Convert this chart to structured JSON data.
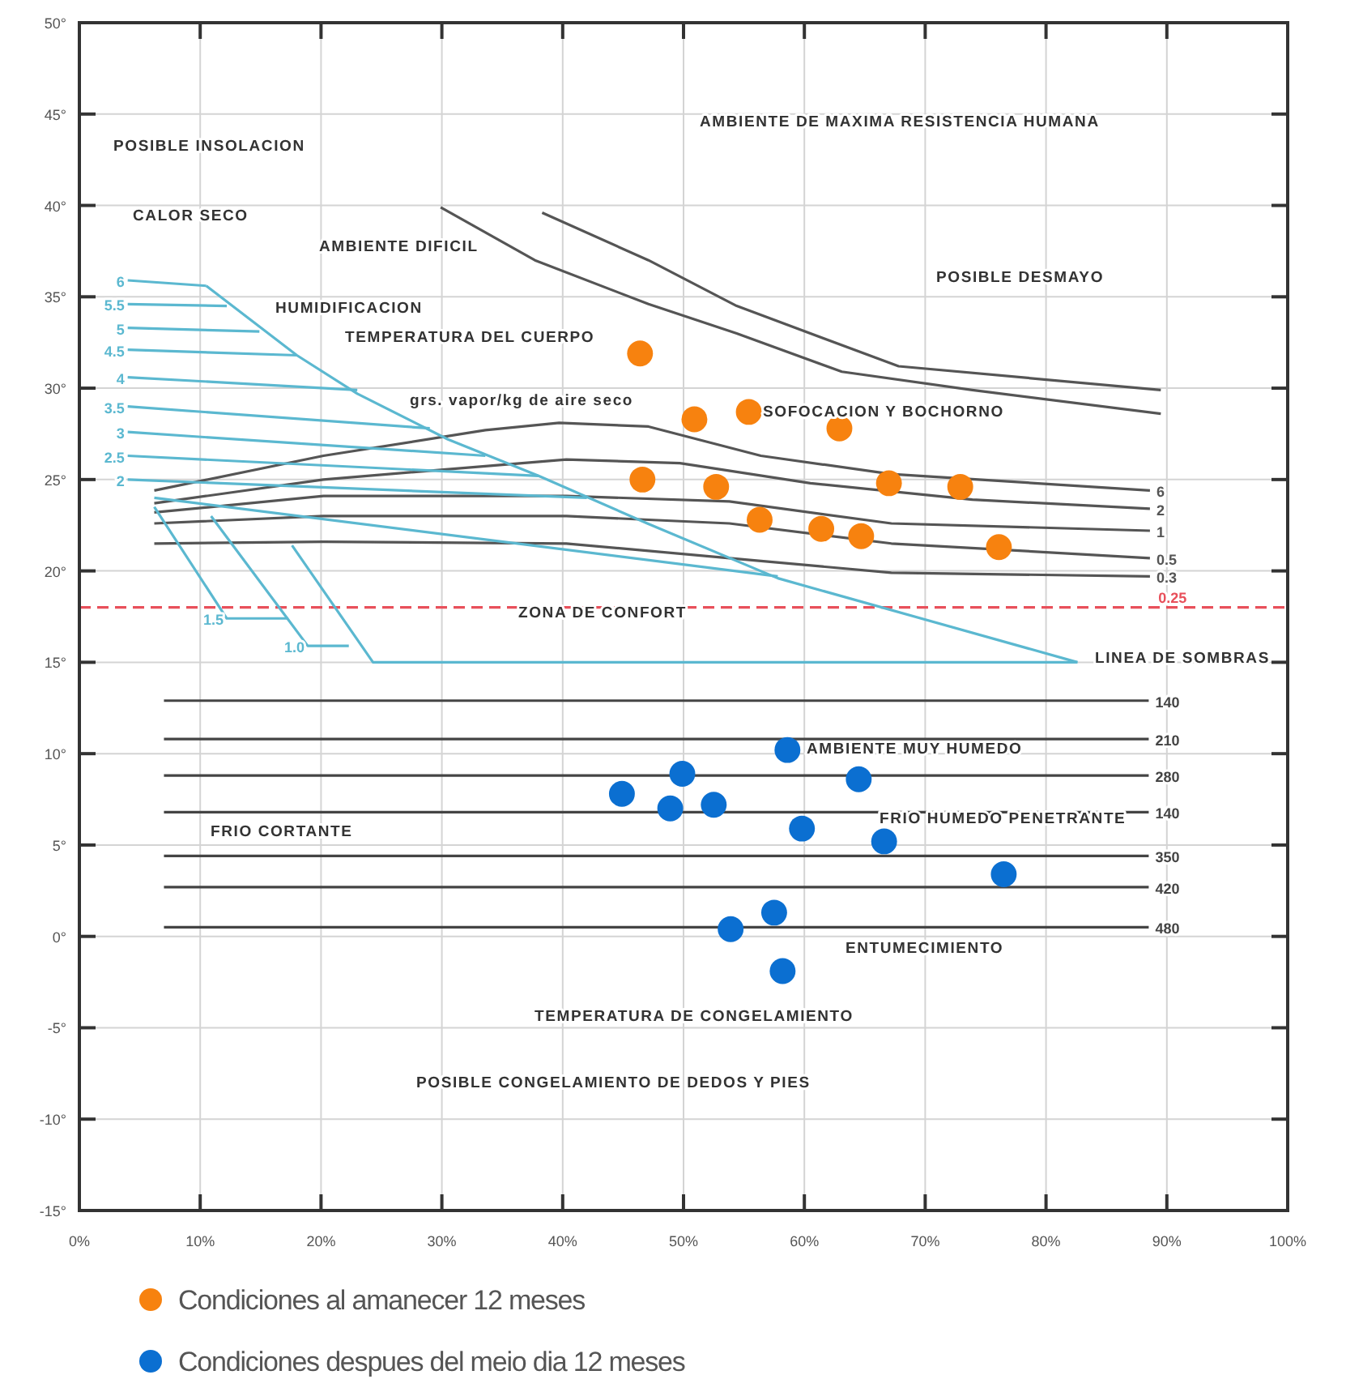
{
  "chart_data": {
    "type": "scatter",
    "xlim": [
      0,
      100
    ],
    "ylim": [
      -15,
      50
    ],
    "xticks": [
      {
        "value": 0,
        "label": "0%"
      },
      {
        "value": 10,
        "label": "10%"
      },
      {
        "value": 20,
        "label": "20%"
      },
      {
        "value": 30,
        "label": "30%"
      },
      {
        "value": 40,
        "label": "40%"
      },
      {
        "value": 50,
        "label": "50%"
      },
      {
        "value": 60,
        "label": "60%"
      },
      {
        "value": 70,
        "label": "70%"
      },
      {
        "value": 80,
        "label": "80%"
      },
      {
        "value": 90,
        "label": "90%"
      },
      {
        "value": 100,
        "label": "100%"
      }
    ],
    "yticks": [
      {
        "value": -15,
        "label": "-15°"
      },
      {
        "value": -10,
        "label": "-10°"
      },
      {
        "value": -5,
        "label": "-5°"
      },
      {
        "value": 0,
        "label": "0°"
      },
      {
        "value": 5,
        "label": "5°"
      },
      {
        "value": 10,
        "label": "10°"
      },
      {
        "value": 15,
        "label": "15°"
      },
      {
        "value": 20,
        "label": "20°"
      },
      {
        "value": 25,
        "label": "25°"
      },
      {
        "value": 30,
        "label": "30°"
      },
      {
        "value": 35,
        "label": "35°"
      },
      {
        "value": 40,
        "label": "40°"
      },
      {
        "value": 45,
        "label": "45°"
      },
      {
        "value": 50,
        "label": "50°"
      }
    ],
    "grid": true,
    "legend": "bottom",
    "series": [
      {
        "type": "line",
        "color": "#555555",
        "x": [
          38.3,
          47.1,
          54.4,
          67.8,
          89.5
        ],
        "values": [
          39.6,
          37.0,
          34.5,
          31.2,
          29.9
        ]
      },
      {
        "type": "line",
        "color": "#555555",
        "x": [
          29.9,
          37.7,
          47.1,
          54.4,
          63.1,
          73.9,
          89.5
        ],
        "values": [
          39.9,
          37.0,
          34.6,
          33.0,
          30.9,
          29.9,
          28.6
        ]
      },
      {
        "type": "line",
        "name": "6",
        "color": "#555555",
        "x": [
          6.2,
          20.2,
          33.6,
          39.7,
          47.1,
          56.4,
          67.2,
          88.6
        ],
        "values": [
          24.4,
          26.3,
          27.7,
          28.1,
          27.9,
          26.3,
          25.3,
          24.4
        ]
      },
      {
        "type": "line",
        "name": "2",
        "color": "#555555",
        "x": [
          6.2,
          20.2,
          40.3,
          49.7,
          60.5,
          73.9,
          88.6
        ],
        "values": [
          23.7,
          25.0,
          26.1,
          25.9,
          24.8,
          23.9,
          23.4
        ]
      },
      {
        "type": "line",
        "name": "1",
        "color": "#555555",
        "x": [
          6.2,
          20.2,
          40.3,
          53.8,
          67.2,
          88.6
        ],
        "values": [
          23.2,
          24.1,
          24.1,
          23.8,
          22.6,
          22.2
        ]
      },
      {
        "type": "line",
        "name": "0.5",
        "color": "#555555",
        "x": [
          6.2,
          20.2,
          40.3,
          53.8,
          67.2,
          88.6
        ],
        "values": [
          22.6,
          23.0,
          23.0,
          22.6,
          21.5,
          20.7
        ]
      },
      {
        "type": "line",
        "name": "0.3",
        "color": "#555555",
        "x": [
          6.2,
          20.2,
          40.3,
          53.8,
          67.2,
          88.6
        ],
        "values": [
          21.5,
          21.6,
          21.5,
          20.7,
          19.9,
          19.7
        ]
      },
      {
        "type": "line",
        "name": "0.25",
        "color": "#e8505b",
        "line_style": "dashed",
        "x": [
          0,
          100
        ],
        "values": [
          18,
          18
        ]
      },
      {
        "type": "line",
        "name": "140",
        "color": "#444444",
        "x": [
          7,
          88.5
        ],
        "values": [
          12.9,
          12.9
        ]
      },
      {
        "type": "line",
        "name": "210",
        "color": "#444444",
        "x": [
          7,
          88.5
        ],
        "values": [
          10.8,
          10.8
        ]
      },
      {
        "type": "line",
        "name": "280",
        "color": "#444444",
        "x": [
          7,
          88.5
        ],
        "values": [
          8.8,
          8.8
        ]
      },
      {
        "type": "line",
        "name": "140",
        "color": "#444444",
        "x": [
          7,
          88.5
        ],
        "values": [
          6.8,
          6.8
        ]
      },
      {
        "type": "line",
        "name": "350",
        "color": "#444444",
        "x": [
          7,
          88.5
        ],
        "values": [
          4.4,
          4.4
        ]
      },
      {
        "type": "line",
        "name": "420",
        "color": "#444444",
        "x": [
          7,
          88.5
        ],
        "values": [
          2.7,
          2.7
        ]
      },
      {
        "type": "line",
        "name": "480",
        "color": "#444444",
        "x": [
          7,
          88.5
        ],
        "values": [
          0.5,
          0.5
        ]
      },
      {
        "type": "line",
        "name": "6",
        "color": "#5bb8d0",
        "x": [
          4,
          10.5
        ],
        "values": [
          35.9,
          35.6
        ]
      },
      {
        "type": "line",
        "name": "5.5",
        "color": "#5bb8d0",
        "x": [
          4,
          12.2
        ],
        "values": [
          34.6,
          34.5
        ]
      },
      {
        "type": "line",
        "name": "5",
        "color": "#5bb8d0",
        "x": [
          4,
          14.9
        ],
        "values": [
          33.3,
          33.1
        ]
      },
      {
        "type": "line",
        "name": "4.5",
        "color": "#5bb8d0",
        "x": [
          4,
          18
        ],
        "values": [
          32.1,
          31.8
        ]
      },
      {
        "type": "line",
        "name": "4",
        "color": "#5bb8d0",
        "x": [
          4,
          23
        ],
        "values": [
          30.6,
          29.9
        ]
      },
      {
        "type": "line",
        "name": "3.5",
        "color": "#5bb8d0",
        "x": [
          4,
          29
        ],
        "values": [
          29.0,
          27.8
        ]
      },
      {
        "type": "line",
        "name": "3",
        "color": "#5bb8d0",
        "x": [
          4,
          33.6
        ],
        "values": [
          27.6,
          26.3
        ]
      },
      {
        "type": "line",
        "name": "2.5",
        "color": "#5bb8d0",
        "x": [
          4,
          38
        ],
        "values": [
          26.3,
          25.2
        ]
      },
      {
        "type": "line",
        "name": "2",
        "color": "#5bb8d0",
        "x": [
          4,
          42
        ],
        "values": [
          25.0,
          24.0
        ]
      },
      {
        "type": "line",
        "color": "#5bb8d0",
        "x": [
          10.5,
          18,
          23,
          30.5,
          38,
          47,
          57.8,
          82.6
        ],
        "values": [
          35.6,
          31.8,
          29.7,
          27.2,
          25.2,
          22.6,
          19.6,
          15.0
        ]
      },
      {
        "type": "line",
        "color": "#5bb8d0",
        "x": [
          6.2,
          57.8
        ],
        "values": [
          24.0,
          19.7
        ]
      },
      {
        "type": "line",
        "name": "1.5",
        "color": "#5bb8d0",
        "x": [
          6.2,
          12.2,
          17.3
        ],
        "values": [
          23.5,
          17.4,
          17.4
        ]
      },
      {
        "type": "line",
        "name": "1.0",
        "color": "#5bb8d0",
        "x": [
          10.9,
          18.9,
          22.3
        ],
        "values": [
          23.0,
          15.9,
          15.9
        ]
      },
      {
        "type": "line",
        "color": "#5bb8d0",
        "x": [
          17.6,
          24.3,
          82.6
        ],
        "values": [
          21.4,
          15.0,
          15.0
        ]
      },
      {
        "name": "Condiciones al amanecer 12 meses",
        "marker": "circle",
        "color": "#f7820f",
        "x": [
          46.4,
          50.9,
          55.4,
          62.9,
          46.6,
          52.7,
          56.3,
          61.4,
          64.7,
          67.0,
          72.9,
          76.1
        ],
        "values": [
          31.9,
          28.3,
          28.7,
          27.8,
          25.0,
          24.6,
          22.8,
          22.3,
          21.9,
          24.8,
          24.6,
          21.3
        ]
      },
      {
        "name": "Condiciones despues del meio dia 12 meses",
        "marker": "circle",
        "color": "#0b6fd1",
        "x": [
          44.9,
          49.9,
          48.9,
          52.5,
          58.6,
          64.5,
          59.8,
          66.6,
          76.5,
          53.9,
          57.5,
          58.2
        ],
        "values": [
          7.8,
          8.9,
          7.0,
          7.2,
          10.2,
          8.6,
          5.9,
          5.2,
          3.4,
          0.4,
          1.3,
          -1.9
        ]
      }
    ],
    "annotations": [
      "POSIBLE INSOLACION",
      "CALOR SECO",
      "AMBIENTE DIFICIL",
      "HUMIDIFICACION",
      "TEMPERATURA DEL CUERPO",
      "grs. vapor/kg de aire seco",
      "SOFOCACION Y BOCHORNO",
      "AMBIENTE DE MAXIMA RESISTENCIA HUMANA",
      "POSIBLE DESMAYO",
      "ZONA DE CONFORT",
      "LINEA DE SOMBRAS",
      "AMBIENTE MUY HUMEDO",
      "FRIO CORTANTE",
      "FRIO HUMEDO PENETRANTE",
      "ENTUMECIMIENTO",
      "TEMPERATURA DE CONGELAMIENTO",
      "POSIBLE CONGELAMIENTO DE DEDOS Y PIES"
    ]
  }
}
